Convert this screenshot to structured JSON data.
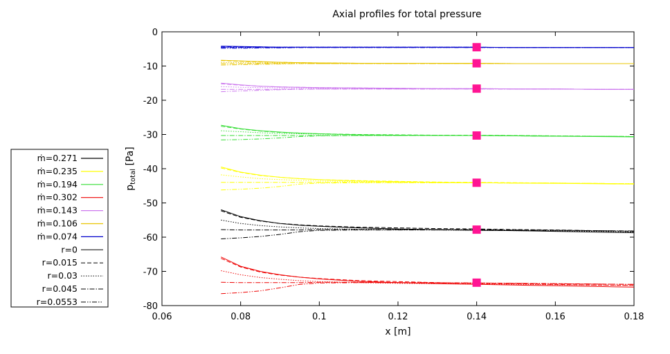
{
  "chart_data": {
    "type": "line",
    "title": "Axial profiles for total pressure",
    "xlabel": "x [m]",
    "ylabel_main": "p",
    "ylabel_sub": "total",
    "ylabel_unit": " [Pa]",
    "xlim": [
      0.06,
      0.18
    ],
    "ylim": [
      -80,
      0
    ],
    "xticks": [
      0.06,
      0.08,
      0.1,
      0.12,
      0.14,
      0.16,
      0.18
    ],
    "xtick_labels": [
      "0.06",
      "0.08",
      "0.1",
      "0.12",
      "0.14",
      "0.16",
      "0.18"
    ],
    "yticks": [
      0,
      -10,
      -20,
      -30,
      -40,
      -50,
      -60,
      -70,
      -80
    ],
    "ytick_labels": [
      "0",
      "-10",
      "-20",
      "-30",
      "-40",
      "-50",
      "-60",
      "-70",
      "-80"
    ],
    "grid": false,
    "legend_position": "left",
    "flow_legend": [
      {
        "label": "ṁ=0.271",
        "color": "#000000"
      },
      {
        "label": "ṁ=0.235",
        "color": "#ffff00"
      },
      {
        "label": "ṁ=0.194",
        "color": "#33dd33"
      },
      {
        "label": "ṁ=0.302",
        "color": "#ee0000"
      },
      {
        "label": "ṁ=0.143",
        "color": "#cc77ee"
      },
      {
        "label": "ṁ=0.106",
        "color": "#e8c400"
      },
      {
        "label": "ṁ=0.074",
        "color": "#0000cc"
      }
    ],
    "radius_legend": [
      {
        "label": "r=0",
        "dash": "solid"
      },
      {
        "label": "r=0.015",
        "dash": "dashed"
      },
      {
        "label": "r=0.03",
        "dash": "dotted"
      },
      {
        "label": "r=0.045",
        "dash": "dashdot"
      },
      {
        "label": "r=0.0553",
        "dash": "dashdotdot"
      }
    ],
    "x": [
      0.075,
      0.08,
      0.085,
      0.09,
      0.095,
      0.1,
      0.11,
      0.12,
      0.13,
      0.14,
      0.15,
      0.16,
      0.17,
      0.18
    ],
    "groups": [
      {
        "name": "ṁ=0.074",
        "color": "#0000cc",
        "series": [
          {
            "radius": "r=0",
            "values": [
              -4.2,
              -4.3,
              -4.4,
              -4.5,
              -4.5,
              -4.5,
              -4.5,
              -4.5,
              -4.5,
              -4.5,
              -4.6,
              -4.6,
              -4.6,
              -4.6
            ]
          },
          {
            "radius": "r=0.015",
            "values": [
              -4.3,
              -4.4,
              -4.4,
              -4.5,
              -4.5,
              -4.5,
              -4.5,
              -4.5,
              -4.5,
              -4.5,
              -4.6,
              -4.6,
              -4.6,
              -4.6
            ]
          },
          {
            "radius": "r=0.03",
            "values": [
              -4.5,
              -4.5,
              -4.5,
              -4.5,
              -4.5,
              -4.5,
              -4.5,
              -4.5,
              -4.5,
              -4.5,
              -4.6,
              -4.6,
              -4.6,
              -4.6
            ]
          },
          {
            "radius": "r=0.045",
            "values": [
              -4.6,
              -4.6,
              -4.6,
              -4.6,
              -4.6,
              -4.6,
              -4.6,
              -4.6,
              -4.6,
              -4.6,
              -4.6,
              -4.6,
              -4.6,
              -4.6
            ]
          },
          {
            "radius": "r=0.0553",
            "values": [
              -4.8,
              -4.8,
              -4.7,
              -4.7,
              -4.6,
              -4.6,
              -4.6,
              -4.6,
              -4.6,
              -4.6,
              -4.6,
              -4.6,
              -4.6,
              -4.6
            ]
          }
        ]
      },
      {
        "name": "ṁ=0.106",
        "color": "#e8c400",
        "series": [
          {
            "radius": "r=0",
            "values": [
              -8.3,
              -8.5,
              -8.7,
              -8.9,
              -9.0,
              -9.1,
              -9.2,
              -9.2,
              -9.2,
              -9.2,
              -9.3,
              -9.3,
              -9.3,
              -9.3
            ]
          },
          {
            "radius": "r=0.015",
            "values": [
              -8.4,
              -8.6,
              -8.8,
              -8.9,
              -9.0,
              -9.1,
              -9.2,
              -9.2,
              -9.2,
              -9.2,
              -9.3,
              -9.3,
              -9.3,
              -9.3
            ]
          },
          {
            "radius": "r=0.03",
            "values": [
              -8.9,
              -9.0,
              -9.1,
              -9.1,
              -9.2,
              -9.2,
              -9.2,
              -9.2,
              -9.2,
              -9.2,
              -9.3,
              -9.3,
              -9.3,
              -9.3
            ]
          },
          {
            "radius": "r=0.045",
            "values": [
              -9.3,
              -9.3,
              -9.3,
              -9.3,
              -9.3,
              -9.3,
              -9.3,
              -9.3,
              -9.3,
              -9.3,
              -9.3,
              -9.3,
              -9.3,
              -9.3
            ]
          },
          {
            "radius": "r=0.0553",
            "values": [
              -9.7,
              -9.6,
              -9.5,
              -9.4,
              -9.3,
              -9.3,
              -9.3,
              -9.3,
              -9.3,
              -9.3,
              -9.3,
              -9.3,
              -9.3,
              -9.3
            ]
          }
        ]
      },
      {
        "name": "ṁ=0.143",
        "color": "#cc77ee",
        "series": [
          {
            "radius": "r=0",
            "values": [
              -15.0,
              -15.5,
              -15.9,
              -16.1,
              -16.2,
              -16.3,
              -16.4,
              -16.5,
              -16.6,
              -16.6,
              -16.7,
              -16.7,
              -16.8,
              -16.8
            ]
          },
          {
            "radius": "r=0.015",
            "values": [
              -15.2,
              -15.6,
              -15.9,
              -16.1,
              -16.2,
              -16.3,
              -16.4,
              -16.5,
              -16.6,
              -16.6,
              -16.7,
              -16.7,
              -16.8,
              -16.8
            ]
          },
          {
            "radius": "r=0.03",
            "values": [
              -16.0,
              -16.2,
              -16.3,
              -16.4,
              -16.4,
              -16.5,
              -16.5,
              -16.6,
              -16.6,
              -16.6,
              -16.7,
              -16.7,
              -16.8,
              -16.8
            ]
          },
          {
            "radius": "r=0.045",
            "values": [
              -16.8,
              -16.8,
              -16.8,
              -16.8,
              -16.7,
              -16.7,
              -16.7,
              -16.7,
              -16.7,
              -16.7,
              -16.7,
              -16.7,
              -16.8,
              -16.8
            ]
          },
          {
            "radius": "r=0.0553",
            "values": [
              -17.5,
              -17.3,
              -17.1,
              -16.9,
              -16.8,
              -16.7,
              -16.7,
              -16.7,
              -16.7,
              -16.7,
              -16.7,
              -16.7,
              -16.8,
              -16.8
            ]
          }
        ]
      },
      {
        "name": "ṁ=0.194",
        "color": "#33dd33",
        "series": [
          {
            "radius": "r=0",
            "values": [
              -27.3,
              -28.3,
              -28.9,
              -29.3,
              -29.6,
              -29.8,
              -30.1,
              -30.2,
              -30.3,
              -30.3,
              -30.4,
              -30.5,
              -30.6,
              -30.7
            ]
          },
          {
            "radius": "r=0.015",
            "values": [
              -27.6,
              -28.4,
              -29.0,
              -29.4,
              -29.6,
              -29.8,
              -30.0,
              -30.1,
              -30.2,
              -30.2,
              -30.3,
              -30.4,
              -30.5,
              -30.6
            ]
          },
          {
            "radius": "r=0.03",
            "values": [
              -28.9,
              -29.2,
              -29.5,
              -29.7,
              -29.8,
              -29.9,
              -30.1,
              -30.2,
              -30.2,
              -30.3,
              -30.3,
              -30.4,
              -30.5,
              -30.6
            ]
          },
          {
            "radius": "r=0.045",
            "values": [
              -30.3,
              -30.3,
              -30.3,
              -30.3,
              -30.3,
              -30.3,
              -30.3,
              -30.3,
              -30.3,
              -30.3,
              -30.4,
              -30.5,
              -30.5,
              -30.6
            ]
          },
          {
            "radius": "r=0.0553",
            "values": [
              -31.6,
              -31.5,
              -31.3,
              -31.0,
              -30.6,
              -30.4,
              -30.3,
              -30.3,
              -30.3,
              -30.3,
              -30.4,
              -30.5,
              -30.5,
              -30.6
            ]
          }
        ]
      },
      {
        "name": "ṁ=0.235",
        "color": "#ffff00",
        "series": [
          {
            "radius": "r=0",
            "values": [
              -39.5,
              -41.0,
              -41.9,
              -42.5,
              -42.9,
              -43.2,
              -43.6,
              -43.8,
              -44.0,
              -44.1,
              -44.2,
              -44.3,
              -44.4,
              -44.5
            ]
          },
          {
            "radius": "r=0.015",
            "values": [
              -39.8,
              -41.1,
              -42.0,
              -42.5,
              -42.9,
              -43.2,
              -43.5,
              -43.7,
              -43.9,
              -44.0,
              -44.1,
              -44.2,
              -44.3,
              -44.4
            ]
          },
          {
            "radius": "r=0.03",
            "values": [
              -41.8,
              -42.4,
              -42.9,
              -43.2,
              -43.4,
              -43.6,
              -43.8,
              -43.9,
              -44.0,
              -44.1,
              -44.2,
              -44.2,
              -44.3,
              -44.4
            ]
          },
          {
            "radius": "r=0.045",
            "values": [
              -44.0,
              -44.0,
              -44.0,
              -44.0,
              -44.0,
              -44.0,
              -44.0,
              -44.0,
              -44.1,
              -44.1,
              -44.2,
              -44.2,
              -44.3,
              -44.4
            ]
          },
          {
            "radius": "r=0.0553",
            "values": [
              -46.2,
              -46.0,
              -45.7,
              -45.2,
              -44.5,
              -44.2,
              -44.1,
              -44.1,
              -44.1,
              -44.1,
              -44.2,
              -44.2,
              -44.3,
              -44.4
            ]
          }
        ]
      },
      {
        "name": "ṁ=0.271",
        "color": "#000000",
        "series": [
          {
            "radius": "r=0",
            "values": [
              -52.0,
              -54.0,
              -55.2,
              -56.0,
              -56.5,
              -56.8,
              -57.3,
              -57.6,
              -57.8,
              -58.0,
              -58.1,
              -58.3,
              -58.5,
              -58.7
            ]
          },
          {
            "radius": "r=0.015",
            "values": [
              -52.3,
              -54.2,
              -55.3,
              -56.0,
              -56.4,
              -56.7,
              -57.1,
              -57.3,
              -57.5,
              -57.6,
              -57.8,
              -57.9,
              -58.1,
              -58.3
            ]
          },
          {
            "radius": "r=0.03",
            "values": [
              -55.0,
              -56.0,
              -56.6,
              -57.0,
              -57.3,
              -57.5,
              -57.7,
              -57.8,
              -57.9,
              -58.0,
              -58.1,
              -58.2,
              -58.3,
              -58.5
            ]
          },
          {
            "radius": "r=0.045",
            "values": [
              -57.8,
              -57.9,
              -57.9,
              -57.9,
              -57.9,
              -57.8,
              -57.8,
              -57.8,
              -57.8,
              -57.8,
              -57.9,
              -58.0,
              -58.1,
              -58.2
            ]
          },
          {
            "radius": "r=0.0553",
            "values": [
              -60.5,
              -60.2,
              -59.8,
              -59.2,
              -58.4,
              -58.0,
              -57.9,
              -57.9,
              -57.9,
              -57.9,
              -58.0,
              -58.0,
              -58.1,
              -58.2
            ]
          }
        ]
      },
      {
        "name": "ṁ=0.302",
        "color": "#ee0000",
        "series": [
          {
            "radius": "r=0",
            "values": [
              -65.8,
              -68.5,
              -70.0,
              -71.0,
              -71.7,
              -72.2,
              -72.9,
              -73.3,
              -73.6,
              -73.8,
              -74.0,
              -74.2,
              -74.4,
              -74.6
            ]
          },
          {
            "radius": "r=0.015",
            "values": [
              -66.2,
              -68.7,
              -70.2,
              -71.1,
              -71.7,
              -72.1,
              -72.7,
              -73.0,
              -73.3,
              -73.5,
              -73.6,
              -73.8,
              -74.0,
              -74.1
            ]
          },
          {
            "radius": "r=0.03",
            "values": [
              -69.8,
              -71.0,
              -71.8,
              -72.3,
              -72.7,
              -73.0,
              -73.3,
              -73.5,
              -73.6,
              -73.7,
              -73.8,
              -73.9,
              -74.0,
              -74.1
            ]
          },
          {
            "radius": "r=0.045",
            "values": [
              -73.2,
              -73.3,
              -73.3,
              -73.3,
              -73.3,
              -73.2,
              -73.2,
              -73.3,
              -73.3,
              -73.4,
              -73.5,
              -73.6,
              -73.7,
              -73.8
            ]
          },
          {
            "radius": "r=0.0553",
            "values": [
              -76.5,
              -76.2,
              -75.7,
              -74.8,
              -73.8,
              -73.4,
              -73.3,
              -73.3,
              -73.4,
              -73.4,
              -73.5,
              -73.6,
              -73.7,
              -73.8
            ]
          }
        ]
      }
    ],
    "markers": {
      "color": "#ff1493",
      "x": 0.14,
      "y": [
        -4.5,
        -9.2,
        -16.6,
        -30.3,
        -44.1,
        -57.8,
        -73.3
      ]
    }
  }
}
